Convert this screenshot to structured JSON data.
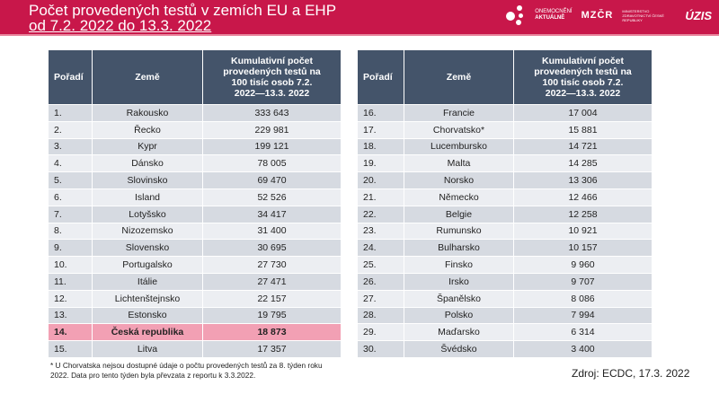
{
  "header": {
    "title_line1": "Počet provedených testů v zemích EU a EHP",
    "title_line2": "od 7.2. 2022 do 13.3. 2022",
    "logo1_top": "ONEMOCNĚNÍ",
    "logo1_bottom": "AKTUÁLNĚ",
    "logo2": "MZČR",
    "logo2_text": "MINISTERSTVO ZDRAVOTNICTVÍ ČESKÉ REPUBLIKY",
    "logo3": "ÚZIS",
    "color": "#c8174a"
  },
  "columns": {
    "rank": "Pořadí",
    "country": "Země",
    "value": "Kumulativní počet provedených testů na 100 tisíc osob 7.2. 2022—13.3. 2022"
  },
  "left_rows": [
    [
      "1.",
      "Rakousko",
      "333 643"
    ],
    [
      "2.",
      "Řecko",
      "229 981"
    ],
    [
      "3.",
      "Kypr",
      "199 121"
    ],
    [
      "4.",
      "Dánsko",
      "78 005"
    ],
    [
      "5.",
      "Slovinsko",
      "69 470"
    ],
    [
      "6.",
      "Island",
      "52 526"
    ],
    [
      "7.",
      "Lotyšsko",
      "34 417"
    ],
    [
      "8.",
      "Nizozemsko",
      "31 400"
    ],
    [
      "9.",
      "Slovensko",
      "30 695"
    ],
    [
      "10.",
      "Portugalsko",
      "27 730"
    ],
    [
      "11.",
      "Itálie",
      "27 471"
    ],
    [
      "12.",
      "Lichtenštejnsko",
      "22 157"
    ],
    [
      "13.",
      "Estonsko",
      "19 795"
    ],
    [
      "14.",
      "Česká republika",
      "18 873"
    ],
    [
      "15.",
      "Litva",
      "17 357"
    ]
  ],
  "right_rows": [
    [
      "16.",
      "Francie",
      "17 004"
    ],
    [
      "17.",
      "Chorvatsko*",
      "15 881"
    ],
    [
      "18.",
      "Lucembursko",
      "14 721"
    ],
    [
      "19.",
      "Malta",
      "14 285"
    ],
    [
      "20.",
      "Norsko",
      "13 306"
    ],
    [
      "21.",
      "Německo",
      "12 466"
    ],
    [
      "22.",
      "Belgie",
      "12 258"
    ],
    [
      "23.",
      "Rumunsko",
      "10 921"
    ],
    [
      "24.",
      "Bulharsko",
      "10 157"
    ],
    [
      "25.",
      "Finsko",
      "9 960"
    ],
    [
      "26.",
      "Irsko",
      "9 707"
    ],
    [
      "27.",
      "Španělsko",
      "8 086"
    ],
    [
      "28.",
      "Polsko",
      "7 994"
    ],
    [
      "29.",
      "Maďarsko",
      "6 314"
    ],
    [
      "30.",
      "Švédsko",
      "3 400"
    ]
  ],
  "highlight_color": "#f2a0b4",
  "footnote": "* U Chorvatska nejsou dostupné údaje o počtu provedených testů za 8. týden roku 2022. Data pro tento týden byla převzata z reportu k 3.3.2022.",
  "source": "Zdroj: ECDC, 17.3. 2022"
}
